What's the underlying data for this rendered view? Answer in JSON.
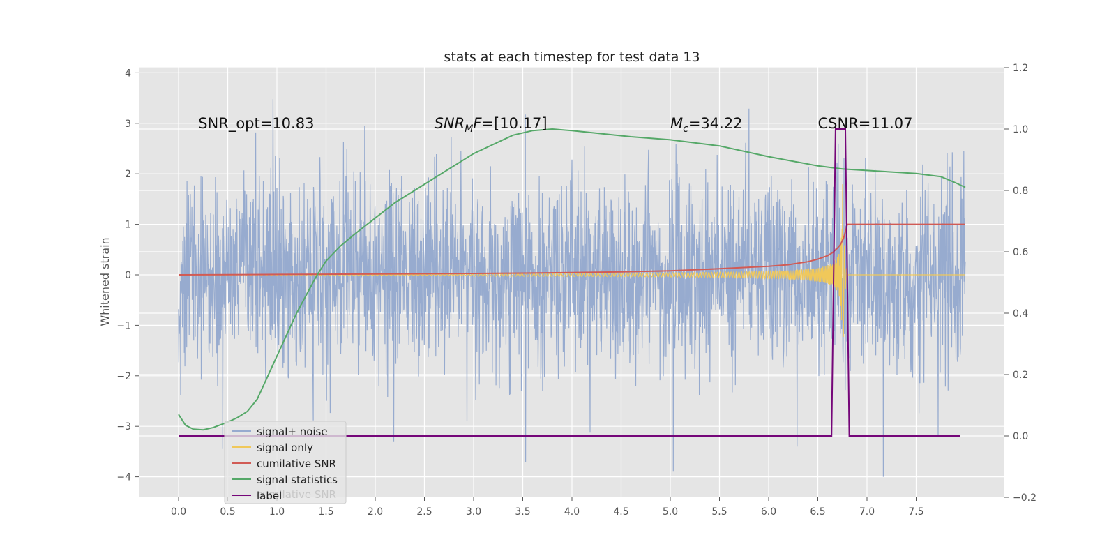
{
  "chart_data": {
    "type": "line",
    "title": "stats at each timestep for test data 13",
    "xlabel": "",
    "ylabel": "Whitened strain",
    "y2label": "",
    "xlim": [
      -0.4,
      8.42
    ],
    "ylim": [
      -4.4,
      4.1
    ],
    "y2lim": [
      -0.2,
      1.2
    ],
    "x_ticks": [
      "0.0",
      "0.5",
      "1.0",
      "1.5",
      "2.0",
      "2.5",
      "3.0",
      "3.5",
      "4.0",
      "4.5",
      "5.0",
      "5.5",
      "6.0",
      "6.5",
      "7.0",
      "7.5"
    ],
    "y_ticks": [
      "−4",
      "−3",
      "−2",
      "−1",
      "0",
      "1",
      "2",
      "3",
      "4"
    ],
    "y2_ticks": [
      "−0.2",
      "0.0",
      "0.2",
      "0.4",
      "0.6",
      "0.8",
      "1.0",
      "1.2"
    ],
    "grid": true,
    "legend_position": "lower-left",
    "annotations": [
      {
        "text": "SNR_opt=10.83",
        "x": 0.2,
        "y": 2.9,
        "math": false
      },
      {
        "text": "SNR_MF=[10.17]",
        "x": 2.6,
        "y": 2.9,
        "math": "snrmf"
      },
      {
        "text": "M_c=34.22",
        "x": 5.0,
        "y": 2.9,
        "math": "mc"
      },
      {
        "text": "CSNR=11.07",
        "x": 6.5,
        "y": 2.9,
        "math": false
      }
    ],
    "series": [
      {
        "name": "signal+ noise",
        "color": "#97abcf",
        "axis": "left",
        "kind": "noise",
        "x_range": [
          0.0,
          8.0
        ],
        "envelope_sigma": 0.95,
        "min": -4.0,
        "max": 3.7
      },
      {
        "name": "signal only",
        "color": "#f0c85a",
        "axis": "left",
        "kind": "chirp",
        "x_range": [
          0.0,
          8.0
        ],
        "peak_x": 6.73,
        "peak_amplitude": 2.5
      },
      {
        "name": "cumilative SNR",
        "color": "#d15b55",
        "axis": "left",
        "x": [
          0,
          0.5,
          1,
          1.5,
          2,
          2.5,
          3,
          3.5,
          4,
          4.5,
          5,
          5.5,
          6,
          6.2,
          6.4,
          6.5,
          6.6,
          6.65,
          6.7,
          6.73,
          6.76,
          6.78,
          6.8,
          7.0,
          8.0
        ],
        "values": [
          0,
          0.003,
          0.008,
          0.012,
          0.017,
          0.022,
          0.028,
          0.035,
          0.045,
          0.06,
          0.08,
          0.12,
          0.17,
          0.2,
          0.26,
          0.31,
          0.38,
          0.44,
          0.53,
          0.6,
          0.72,
          0.85,
          1.0,
          1.0,
          1.0
        ]
      },
      {
        "name": "signal statistics",
        "color": "#55a868",
        "axis": "right",
        "x": [
          0,
          0.07,
          0.15,
          0.25,
          0.35,
          0.5,
          0.6,
          0.7,
          0.8,
          0.9,
          1.0,
          1.1,
          1.2,
          1.3,
          1.4,
          1.5,
          1.65,
          1.8,
          2.0,
          2.2,
          2.4,
          2.6,
          2.8,
          3.0,
          3.2,
          3.4,
          3.6,
          3.8,
          4.0,
          4.3,
          4.6,
          5.0,
          5.5,
          6.0,
          6.5,
          6.75,
          7.0,
          7.5,
          7.75,
          7.9,
          8.0
        ],
        "values": [
          0.07,
          0.035,
          0.022,
          0.02,
          0.027,
          0.045,
          0.06,
          0.08,
          0.12,
          0.19,
          0.26,
          0.33,
          0.4,
          0.46,
          0.52,
          0.57,
          0.62,
          0.66,
          0.71,
          0.76,
          0.8,
          0.84,
          0.88,
          0.92,
          0.95,
          0.98,
          0.995,
          1.0,
          0.995,
          0.985,
          0.975,
          0.965,
          0.945,
          0.91,
          0.88,
          0.87,
          0.865,
          0.855,
          0.845,
          0.825,
          0.81
        ]
      },
      {
        "name": "label",
        "color": "#750679",
        "axis": "right",
        "x": [
          0,
          6.64,
          6.68,
          6.7,
          6.76,
          6.78,
          6.82,
          7.95
        ],
        "values": [
          0,
          0,
          1.0,
          1.0,
          1.0,
          1.0,
          0,
          0
        ]
      }
    ],
    "legend_ghost_text": "cumilative SNR"
  }
}
